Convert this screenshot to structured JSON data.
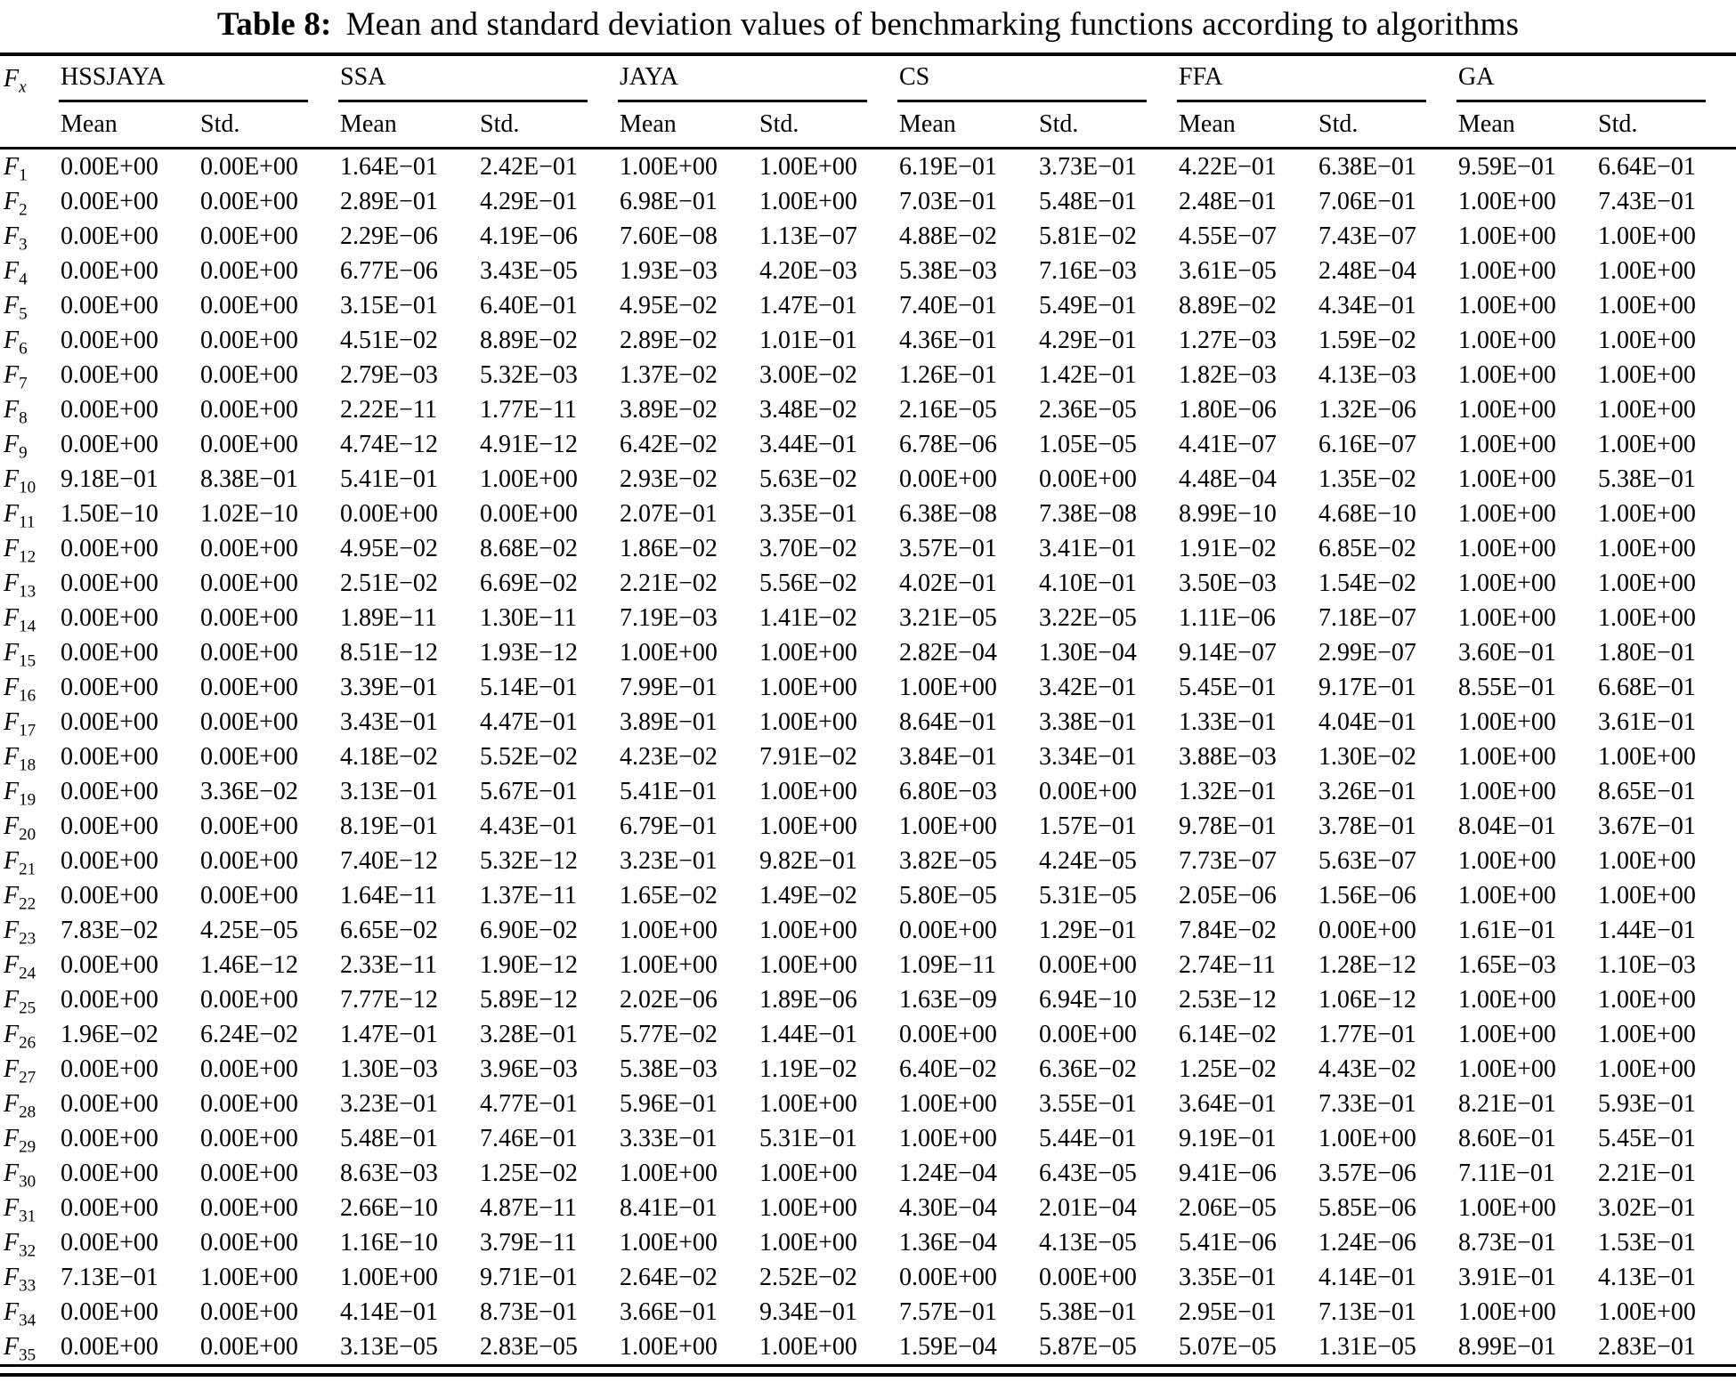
{
  "caption": {
    "label": "Table 8:",
    "text": "Mean and standard deviation values of benchmarking functions according to algorithms"
  },
  "table": {
    "row_symbol": {
      "base": "F",
      "sub": "x"
    },
    "groups": [
      {
        "name": "HSSJAYA"
      },
      {
        "name": "SSA"
      },
      {
        "name": "JAYA"
      },
      {
        "name": "CS"
      },
      {
        "name": "FFA"
      },
      {
        "name": "GA"
      }
    ],
    "subheaders": [
      "Mean",
      "Std."
    ],
    "rows": [
      {
        "sub": "1",
        "values": [
          "0.00E+00",
          "0.00E+00",
          "1.64E−01",
          "2.42E−01",
          "1.00E+00",
          "1.00E+00",
          "6.19E−01",
          "3.73E−01",
          "4.22E−01",
          "6.38E−01",
          "9.59E−01",
          "6.64E−01"
        ]
      },
      {
        "sub": "2",
        "values": [
          "0.00E+00",
          "0.00E+00",
          "2.89E−01",
          "4.29E−01",
          "6.98E−01",
          "1.00E+00",
          "7.03E−01",
          "5.48E−01",
          "2.48E−01",
          "7.06E−01",
          "1.00E+00",
          "7.43E−01"
        ]
      },
      {
        "sub": "3",
        "values": [
          "0.00E+00",
          "0.00E+00",
          "2.29E−06",
          "4.19E−06",
          "7.60E−08",
          "1.13E−07",
          "4.88E−02",
          "5.81E−02",
          "4.55E−07",
          "7.43E−07",
          "1.00E+00",
          "1.00E+00"
        ]
      },
      {
        "sub": "4",
        "values": [
          "0.00E+00",
          "0.00E+00",
          "6.77E−06",
          "3.43E−05",
          "1.93E−03",
          "4.20E−03",
          "5.38E−03",
          "7.16E−03",
          "3.61E−05",
          "2.48E−04",
          "1.00E+00",
          "1.00E+00"
        ]
      },
      {
        "sub": "5",
        "values": [
          "0.00E+00",
          "0.00E+00",
          "3.15E−01",
          "6.40E−01",
          "4.95E−02",
          "1.47E−01",
          "7.40E−01",
          "5.49E−01",
          "8.89E−02",
          "4.34E−01",
          "1.00E+00",
          "1.00E+00"
        ]
      },
      {
        "sub": "6",
        "values": [
          "0.00E+00",
          "0.00E+00",
          "4.51E−02",
          "8.89E−02",
          "2.89E−02",
          "1.01E−01",
          "4.36E−01",
          "4.29E−01",
          "1.27E−03",
          "1.59E−02",
          "1.00E+00",
          "1.00E+00"
        ]
      },
      {
        "sub": "7",
        "values": [
          "0.00E+00",
          "0.00E+00",
          "2.79E−03",
          "5.32E−03",
          "1.37E−02",
          "3.00E−02",
          "1.26E−01",
          "1.42E−01",
          "1.82E−03",
          "4.13E−03",
          "1.00E+00",
          "1.00E+00"
        ]
      },
      {
        "sub": "8",
        "values": [
          "0.00E+00",
          "0.00E+00",
          "2.22E−11",
          "1.77E−11",
          "3.89E−02",
          "3.48E−02",
          "2.16E−05",
          "2.36E−05",
          "1.80E−06",
          "1.32E−06",
          "1.00E+00",
          "1.00E+00"
        ]
      },
      {
        "sub": "9",
        "values": [
          "0.00E+00",
          "0.00E+00",
          "4.74E−12",
          "4.91E−12",
          "6.42E−02",
          "3.44E−01",
          "6.78E−06",
          "1.05E−05",
          "4.41E−07",
          "6.16E−07",
          "1.00E+00",
          "1.00E+00"
        ]
      },
      {
        "sub": "10",
        "values": [
          "9.18E−01",
          "8.38E−01",
          "5.41E−01",
          "1.00E+00",
          "2.93E−02",
          "5.63E−02",
          "0.00E+00",
          "0.00E+00",
          "4.48E−04",
          "1.35E−02",
          "1.00E+00",
          "5.38E−01"
        ]
      },
      {
        "sub": "11",
        "values": [
          "1.50E−10",
          "1.02E−10",
          "0.00E+00",
          "0.00E+00",
          "2.07E−01",
          "3.35E−01",
          "6.38E−08",
          "7.38E−08",
          "8.99E−10",
          "4.68E−10",
          "1.00E+00",
          "1.00E+00"
        ]
      },
      {
        "sub": "12",
        "values": [
          "0.00E+00",
          "0.00E+00",
          "4.95E−02",
          "8.68E−02",
          "1.86E−02",
          "3.70E−02",
          "3.57E−01",
          "3.41E−01",
          "1.91E−02",
          "6.85E−02",
          "1.00E+00",
          "1.00E+00"
        ]
      },
      {
        "sub": "13",
        "values": [
          "0.00E+00",
          "0.00E+00",
          "2.51E−02",
          "6.69E−02",
          "2.21E−02",
          "5.56E−02",
          "4.02E−01",
          "4.10E−01",
          "3.50E−03",
          "1.54E−02",
          "1.00E+00",
          "1.00E+00"
        ]
      },
      {
        "sub": "14",
        "values": [
          "0.00E+00",
          "0.00E+00",
          "1.89E−11",
          "1.30E−11",
          "7.19E−03",
          "1.41E−02",
          "3.21E−05",
          "3.22E−05",
          "1.11E−06",
          "7.18E−07",
          "1.00E+00",
          "1.00E+00"
        ]
      },
      {
        "sub": "15",
        "values": [
          "0.00E+00",
          "0.00E+00",
          "8.51E−12",
          "1.93E−12",
          "1.00E+00",
          "1.00E+00",
          "2.82E−04",
          "1.30E−04",
          "9.14E−07",
          "2.99E−07",
          "3.60E−01",
          "1.80E−01"
        ]
      },
      {
        "sub": "16",
        "values": [
          "0.00E+00",
          "0.00E+00",
          "3.39E−01",
          "5.14E−01",
          "7.99E−01",
          "1.00E+00",
          "1.00E+00",
          "3.42E−01",
          "5.45E−01",
          "9.17E−01",
          "8.55E−01",
          "6.68E−01"
        ]
      },
      {
        "sub": "17",
        "values": [
          "0.00E+00",
          "0.00E+00",
          "3.43E−01",
          "4.47E−01",
          "3.89E−01",
          "1.00E+00",
          "8.64E−01",
          "3.38E−01",
          "1.33E−01",
          "4.04E−01",
          "1.00E+00",
          "3.61E−01"
        ]
      },
      {
        "sub": "18",
        "values": [
          "0.00E+00",
          "0.00E+00",
          "4.18E−02",
          "5.52E−02",
          "4.23E−02",
          "7.91E−02",
          "3.84E−01",
          "3.34E−01",
          "3.88E−03",
          "1.30E−02",
          "1.00E+00",
          "1.00E+00"
        ]
      },
      {
        "sub": "19",
        "values": [
          "0.00E+00",
          "3.36E−02",
          "3.13E−01",
          "5.67E−01",
          "5.41E−01",
          "1.00E+00",
          "6.80E−03",
          "0.00E+00",
          "1.32E−01",
          "3.26E−01",
          "1.00E+00",
          "8.65E−01"
        ]
      },
      {
        "sub": "20",
        "values": [
          "0.00E+00",
          "0.00E+00",
          "8.19E−01",
          "4.43E−01",
          "6.79E−01",
          "1.00E+00",
          "1.00E+00",
          "1.57E−01",
          "9.78E−01",
          "3.78E−01",
          "8.04E−01",
          "3.67E−01"
        ]
      },
      {
        "sub": "21",
        "values": [
          "0.00E+00",
          "0.00E+00",
          "7.40E−12",
          "5.32E−12",
          "3.23E−01",
          "9.82E−01",
          "3.82E−05",
          "4.24E−05",
          "7.73E−07",
          "5.63E−07",
          "1.00E+00",
          "1.00E+00"
        ]
      },
      {
        "sub": "22",
        "values": [
          "0.00E+00",
          "0.00E+00",
          "1.64E−11",
          "1.37E−11",
          "1.65E−02",
          "1.49E−02",
          "5.80E−05",
          "5.31E−05",
          "2.05E−06",
          "1.56E−06",
          "1.00E+00",
          "1.00E+00"
        ]
      },
      {
        "sub": "23",
        "values": [
          "7.83E−02",
          "4.25E−05",
          "6.65E−02",
          "6.90E−02",
          "1.00E+00",
          "1.00E+00",
          "0.00E+00",
          "1.29E−01",
          "7.84E−02",
          "0.00E+00",
          "1.61E−01",
          "1.44E−01"
        ]
      },
      {
        "sub": "24",
        "values": [
          "0.00E+00",
          "1.46E−12",
          "2.33E−11",
          "1.90E−12",
          "1.00E+00",
          "1.00E+00",
          "1.09E−11",
          "0.00E+00",
          "2.74E−11",
          "1.28E−12",
          "1.65E−03",
          "1.10E−03"
        ]
      },
      {
        "sub": "25",
        "values": [
          "0.00E+00",
          "0.00E+00",
          "7.77E−12",
          "5.89E−12",
          "2.02E−06",
          "1.89E−06",
          "1.63E−09",
          "6.94E−10",
          "2.53E−12",
          "1.06E−12",
          "1.00E+00",
          "1.00E+00"
        ]
      },
      {
        "sub": "26",
        "values": [
          "1.96E−02",
          "6.24E−02",
          "1.47E−01",
          "3.28E−01",
          "5.77E−02",
          "1.44E−01",
          "0.00E+00",
          "0.00E+00",
          "6.14E−02",
          "1.77E−01",
          "1.00E+00",
          "1.00E+00"
        ]
      },
      {
        "sub": "27",
        "values": [
          "0.00E+00",
          "0.00E+00",
          "1.30E−03",
          "3.96E−03",
          "5.38E−03",
          "1.19E−02",
          "6.40E−02",
          "6.36E−02",
          "1.25E−02",
          "4.43E−02",
          "1.00E+00",
          "1.00E+00"
        ]
      },
      {
        "sub": "28",
        "values": [
          "0.00E+00",
          "0.00E+00",
          "3.23E−01",
          "4.77E−01",
          "5.96E−01",
          "1.00E+00",
          "1.00E+00",
          "3.55E−01",
          "3.64E−01",
          "7.33E−01",
          "8.21E−01",
          "5.93E−01"
        ]
      },
      {
        "sub": "29",
        "values": [
          "0.00E+00",
          "0.00E+00",
          "5.48E−01",
          "7.46E−01",
          "3.33E−01",
          "5.31E−01",
          "1.00E+00",
          "5.44E−01",
          "9.19E−01",
          "1.00E+00",
          "8.60E−01",
          "5.45E−01"
        ]
      },
      {
        "sub": "30",
        "values": [
          "0.00E+00",
          "0.00E+00",
          "8.63E−03",
          "1.25E−02",
          "1.00E+00",
          "1.00E+00",
          "1.24E−04",
          "6.43E−05",
          "9.41E−06",
          "3.57E−06",
          "7.11E−01",
          "2.21E−01"
        ]
      },
      {
        "sub": "31",
        "values": [
          "0.00E+00",
          "0.00E+00",
          "2.66E−10",
          "4.87E−11",
          "8.41E−01",
          "1.00E+00",
          "4.30E−04",
          "2.01E−04",
          "2.06E−05",
          "5.85E−06",
          "1.00E+00",
          "3.02E−01"
        ]
      },
      {
        "sub": "32",
        "values": [
          "0.00E+00",
          "0.00E+00",
          "1.16E−10",
          "3.79E−11",
          "1.00E+00",
          "1.00E+00",
          "1.36E−04",
          "4.13E−05",
          "5.41E−06",
          "1.24E−06",
          "8.73E−01",
          "1.53E−01"
        ]
      },
      {
        "sub": "33",
        "values": [
          "7.13E−01",
          "1.00E+00",
          "1.00E+00",
          "9.71E−01",
          "2.64E−02",
          "2.52E−02",
          "0.00E+00",
          "0.00E+00",
          "3.35E−01",
          "4.14E−01",
          "3.91E−01",
          "4.13E−01"
        ]
      },
      {
        "sub": "34",
        "values": [
          "0.00E+00",
          "0.00E+00",
          "4.14E−01",
          "8.73E−01",
          "3.66E−01",
          "9.34E−01",
          "7.57E−01",
          "5.38E−01",
          "2.95E−01",
          "7.13E−01",
          "1.00E+00",
          "1.00E+00"
        ]
      },
      {
        "sub": "35",
        "values": [
          "0.00E+00",
          "0.00E+00",
          "3.13E−05",
          "2.83E−05",
          "1.00E+00",
          "1.00E+00",
          "1.59E−04",
          "5.87E−05",
          "5.07E−05",
          "1.31E−05",
          "8.99E−01",
          "2.83E−01"
        ]
      }
    ]
  }
}
